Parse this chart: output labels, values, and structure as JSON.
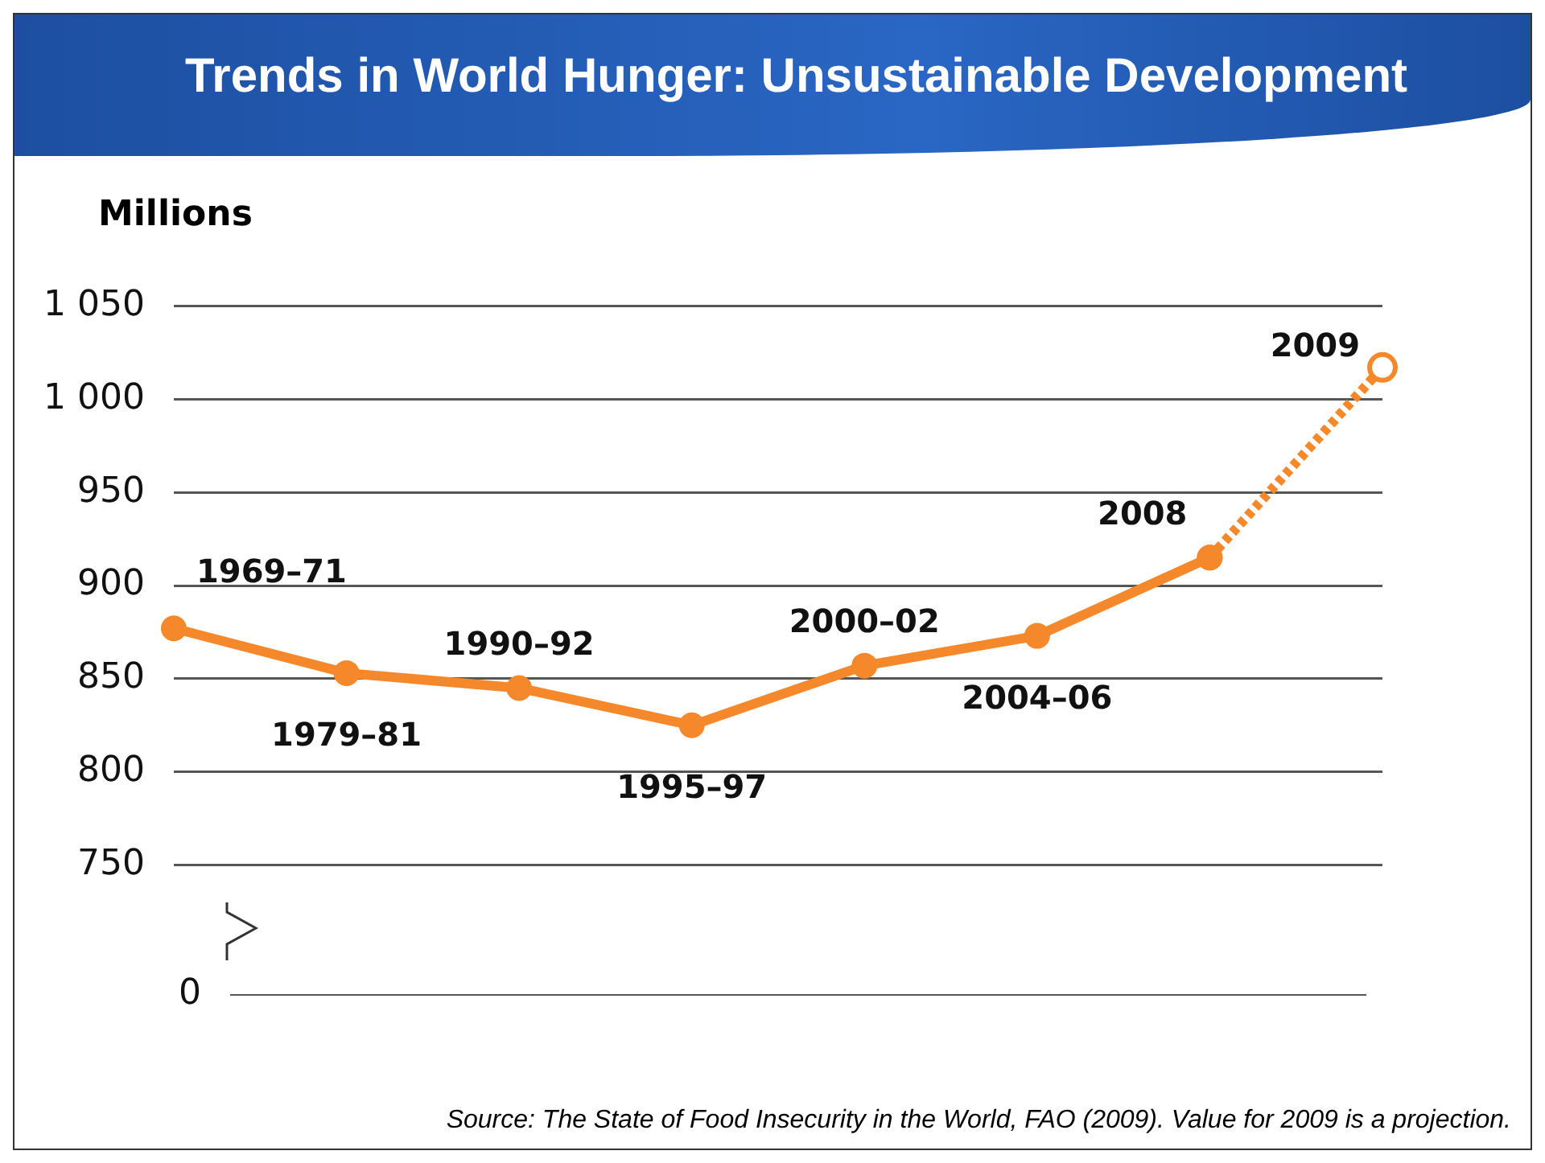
{
  "chart_data": {
    "type": "line",
    "title": "Trends in World Hunger: Unsustainable Development",
    "ylabel": "Millions",
    "categories": [
      null,
      null,
      null,
      null,
      null,
      null,
      null,
      null
    ],
    "ylim": [
      750,
      1050
    ],
    "yticks": [
      750,
      800,
      850,
      900,
      950,
      {
        "value": 1000,
        "label": "1 000"
      },
      {
        "value": 1050,
        "label": "1 050"
      }
    ],
    "grid": "y",
    "legend": false,
    "marker": "circle",
    "series": [
      {
        "color": "#f5882b",
        "line_style": "solid",
        "values": [
          877,
          853,
          845,
          825,
          857,
          873,
          915,
          null
        ]
      },
      {
        "color": "#f5882b",
        "line_style": "dotted",
        "values": [
          null,
          null,
          null,
          null,
          null,
          null,
          915,
          1017
        ]
      }
    ],
    "annotations": [
      "1969–71",
      "1979–81",
      "1990–92",
      "1995–97",
      "2000–02",
      "2004–06",
      "2008",
      "2009",
      "0",
      "Source: The State of Food Insecurity in the World, FAO (2009). Value for 2009 is a projection."
    ]
  }
}
